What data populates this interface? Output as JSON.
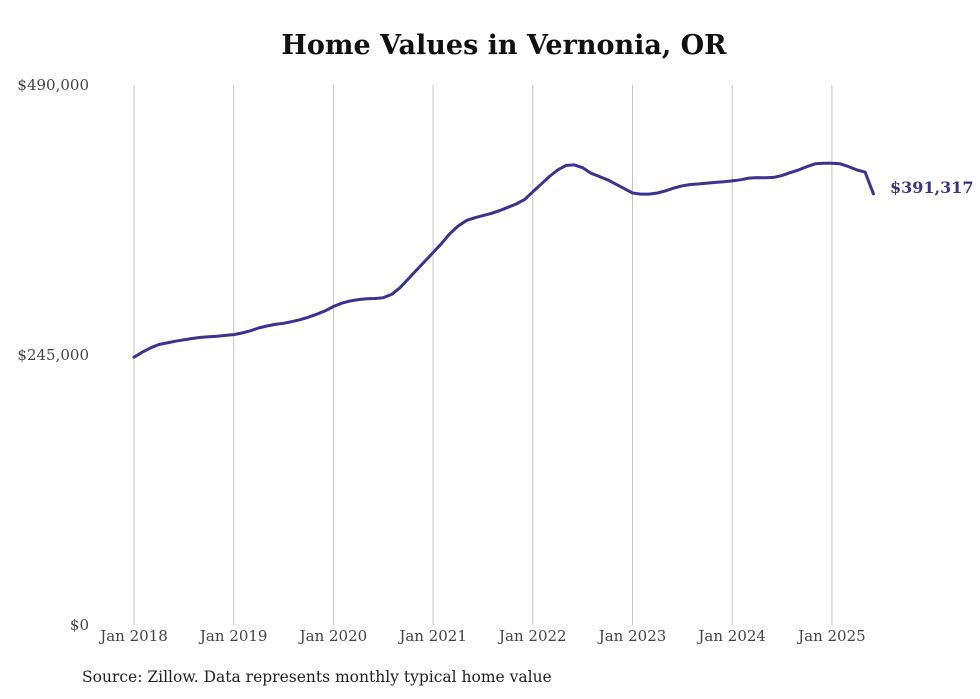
{
  "chart_data": {
    "type": "line",
    "title": "Home Values in Vernonia, OR",
    "xlabel": "",
    "ylabel": "",
    "ylim": [
      0,
      490000
    ],
    "y_ticks": [
      "$0",
      "$245,000",
      "$490,000"
    ],
    "x_ticks": [
      "Jan 2018",
      "Jan 2019",
      "Jan 2020",
      "Jan 2021",
      "Jan 2022",
      "Jan 2023",
      "Jan 2024",
      "Jan 2025"
    ],
    "grid": "vertical lines at each January",
    "line_color": "#3a3391",
    "end_label": "$391,317",
    "series": [
      {
        "x": [
          "2018-01",
          "2018-02",
          "2018-03",
          "2018-04",
          "2018-05",
          "2018-06",
          "2018-07",
          "2018-08",
          "2018-09",
          "2018-10",
          "2018-11",
          "2018-12",
          "2019-01",
          "2019-02",
          "2019-03",
          "2019-04",
          "2019-05",
          "2019-06",
          "2019-07",
          "2019-08",
          "2019-09",
          "2019-10",
          "2019-11",
          "2019-12",
          "2020-01",
          "2020-02",
          "2020-03",
          "2020-04",
          "2020-05",
          "2020-06",
          "2020-07",
          "2020-08",
          "2020-09",
          "2020-10",
          "2020-11",
          "2020-12",
          "2021-01",
          "2021-02",
          "2021-03",
          "2021-04",
          "2021-05",
          "2021-06",
          "2021-07",
          "2021-08",
          "2021-09",
          "2021-10",
          "2021-11",
          "2021-12",
          "2022-01",
          "2022-02",
          "2022-03",
          "2022-04",
          "2022-05",
          "2022-06",
          "2022-07",
          "2022-08",
          "2022-09",
          "2022-10",
          "2022-11",
          "2022-12",
          "2023-01",
          "2023-02",
          "2023-03",
          "2023-04",
          "2023-05",
          "2023-06",
          "2023-07",
          "2023-08",
          "2023-09",
          "2023-10",
          "2023-11",
          "2023-12",
          "2024-01",
          "2024-02",
          "2024-03",
          "2024-04",
          "2024-05",
          "2024-06",
          "2024-07",
          "2024-08",
          "2024-09",
          "2024-10",
          "2024-11",
          "2024-12",
          "2025-01",
          "2025-02",
          "2025-03",
          "2025-04",
          "2025-05",
          "2025-06"
        ],
        "values": [
          243000,
          247500,
          251500,
          254500,
          256000,
          257500,
          258800,
          260000,
          261000,
          261500,
          262000,
          262800,
          263500,
          265000,
          267000,
          269500,
          271300,
          272800,
          273800,
          275300,
          277000,
          279300,
          282000,
          285000,
          289000,
          292000,
          294000,
          295300,
          296000,
          296300,
          297000,
          300000,
          306000,
          314000,
          322000,
          330000,
          338000,
          346000,
          355000,
          362000,
          367000,
          369500,
          371500,
          373500,
          376000,
          379000,
          382000,
          386000,
          393000,
          400000,
          407000,
          413000,
          417000,
          417500,
          415000,
          410000,
          407000,
          404000,
          400000,
          396000,
          392000,
          391000,
          391000,
          392000,
          394000,
          396500,
          398500,
          399700,
          400300,
          401000,
          401600,
          402200,
          403000,
          404000,
          405500,
          406000,
          405800,
          406200,
          408000,
          410500,
          413000,
          416000,
          418500,
          419000,
          419000,
          418500,
          416000,
          413000,
          411000,
          391317
        ]
      }
    ]
  }
}
